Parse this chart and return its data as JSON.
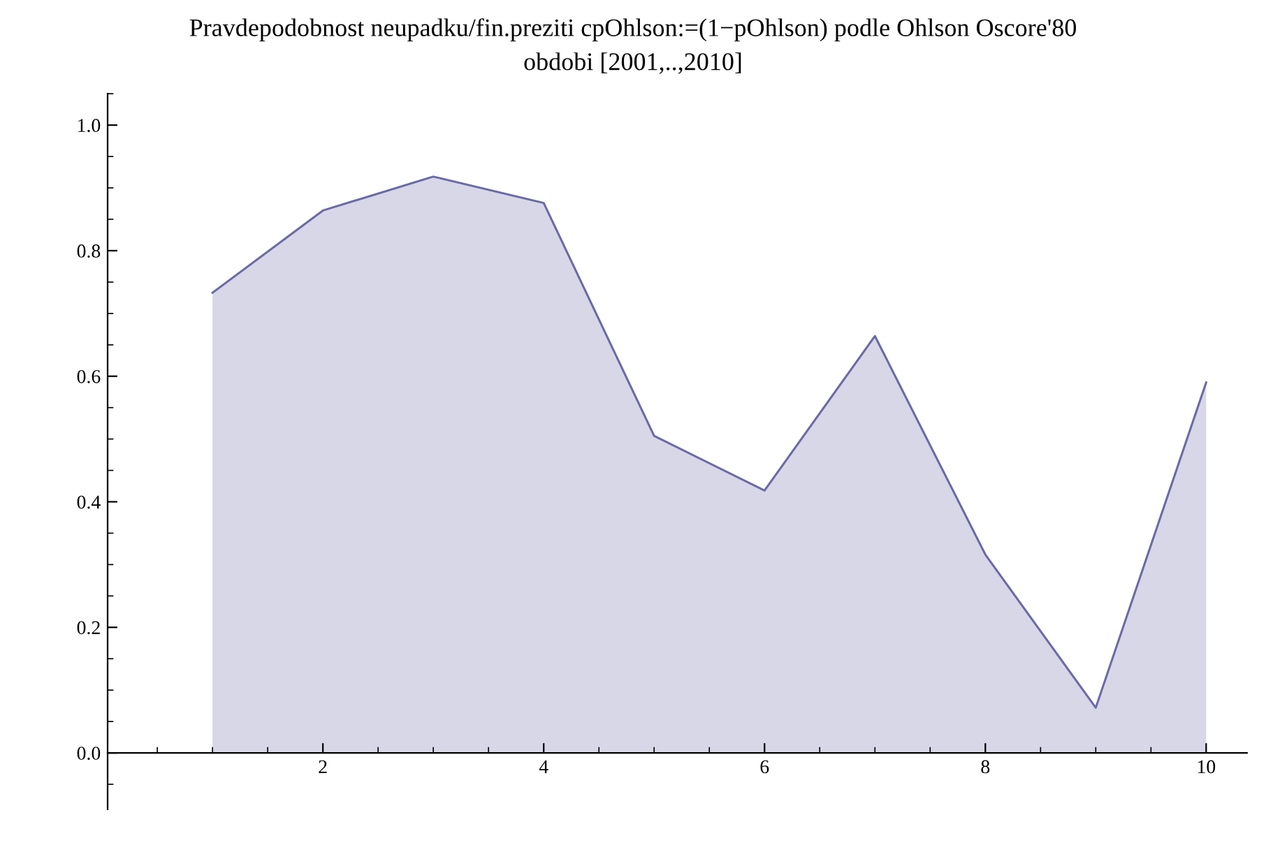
{
  "chart_data": {
    "type": "area",
    "title": "Pravdepodobnost neupadku/fin.preziti cpOhlson:=(1−pOhlson) podle Ohlson Oscore'80",
    "subtitle": "obdobi [2001,..,2010]",
    "x": [
      1,
      2,
      3,
      4,
      5,
      6,
      7,
      8,
      9,
      10
    ],
    "series": [
      {
        "color": "#6a6aa6",
        "values": [
          0.733,
          0.864,
          0.918,
          0.876,
          0.505,
          0.418,
          0.664,
          0.316,
          0.072,
          0.59
        ]
      }
    ],
    "xlim": [
      0.05,
      10.37
    ],
    "ylim": [
      -0.09,
      1.05
    ],
    "xticks": [
      2,
      4,
      6,
      8,
      10
    ],
    "yticks": [
      {
        "value": 0,
        "label": "0.0"
      },
      0.2,
      0.4,
      0.6,
      0.8,
      {
        "value": 1,
        "label": "1.0"
      }
    ],
    "grid": false,
    "legend": false
  }
}
